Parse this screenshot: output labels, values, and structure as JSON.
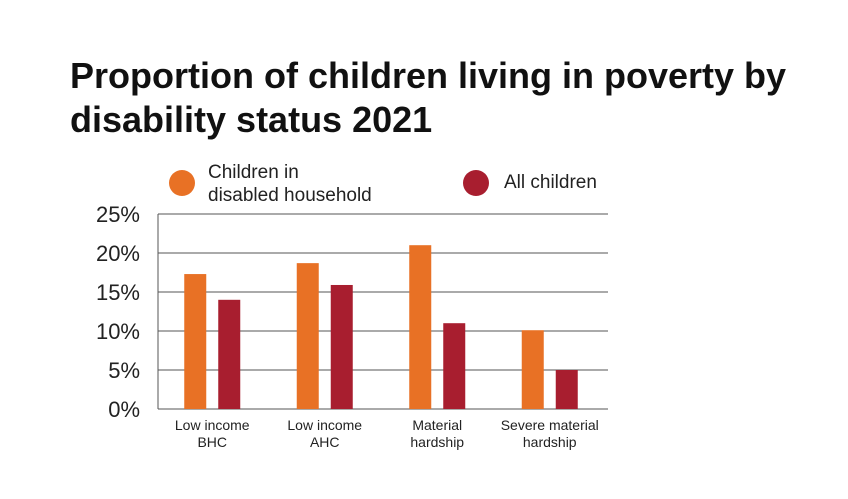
{
  "chart_data": {
    "type": "bar",
    "title": "Proportion of children living in poverty by disability status 2021",
    "categories": [
      [
        "Low income",
        "BHC"
      ],
      [
        "Low income",
        "AHC"
      ],
      [
        "Material",
        "hardship"
      ],
      [
        "Severe material",
        "hardship"
      ]
    ],
    "series": [
      {
        "name": "Children in disabled household",
        "legend_lines": [
          "Children in",
          "disabled household"
        ],
        "color": "#e87125",
        "values": [
          17.3,
          18.7,
          21.0,
          10.1
        ]
      },
      {
        "name": "All children",
        "legend_lines": [
          "All children"
        ],
        "color": "#a81e2f",
        "values": [
          14.0,
          15.9,
          11.0,
          5.0
        ]
      }
    ],
    "yticks": [
      "0%",
      "5%",
      "10%",
      "15%",
      "20%",
      "25%"
    ],
    "ylim": [
      0,
      25
    ],
    "ylabel": "",
    "xlabel": "",
    "grid": true,
    "legend_position": "top"
  }
}
